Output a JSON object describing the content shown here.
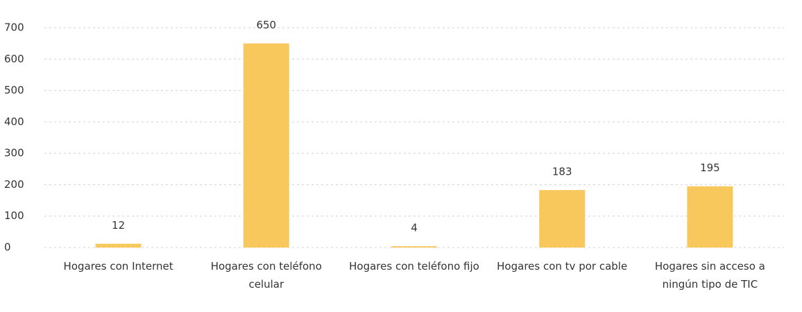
{
  "chart_data": {
    "type": "bar",
    "categories": [
      "Hogares con Internet",
      "Hogares con teléfono celular",
      "Hogares con teléfono fijo",
      "Hogares con tv por cable",
      "Hogares sin acceso a ningún tipo de TIC"
    ],
    "values": [
      12,
      650,
      4,
      183,
      195
    ],
    "color": "#f9c85c",
    "ylim": [
      0,
      700
    ],
    "yticks": [
      0,
      100,
      200,
      300,
      400,
      500,
      600,
      700
    ],
    "grid": true
  }
}
